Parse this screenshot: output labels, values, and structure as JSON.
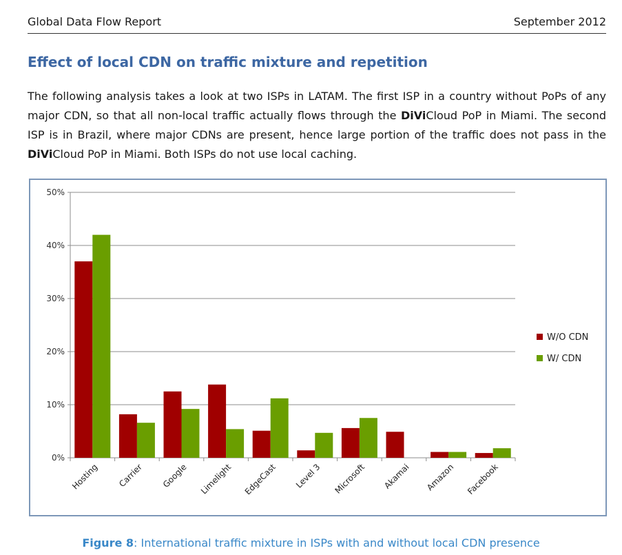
{
  "header": {
    "left": "Global Data Flow Report",
    "right": "September 2012"
  },
  "section": {
    "title": "Effect of local CDN on traffic mixture and repetition",
    "intro_part1": "The following analysis takes a look at two ISPs in LATAM. The first ISP in a country without PoPs of any major CDN, so that all non-local traffic actually flows through the ",
    "brand_bold": "DiVi",
    "brand_rest": "Cloud",
    "intro_part2": " PoP in Miami. The second ISP is in Brazil, where major CDNs are present, hence large portion of the traffic does not pass in the ",
    "intro_part3": " PoP in Miami. Both ISPs do not use local caching."
  },
  "chart_data": {
    "type": "bar",
    "categories": [
      "Hosting",
      "Carrier",
      "Google",
      "Limelight",
      "EdgeCast",
      "Level 3",
      "Microsoft",
      "Akamai",
      "Amazon",
      "Facebook"
    ],
    "series": [
      {
        "name": "W/O CDN",
        "color": "#a00000",
        "values": [
          37,
          8.2,
          12.5,
          13.8,
          5.1,
          1.4,
          5.6,
          4.9,
          1.1,
          0.9
        ]
      },
      {
        "name": "W/ CDN",
        "color": "#6a9e00",
        "values": [
          42,
          6.6,
          9.2,
          5.4,
          11.2,
          4.7,
          7.5,
          0,
          1.1,
          1.8
        ]
      }
    ],
    "ylim": [
      0,
      50
    ],
    "yticks": [
      0,
      10,
      20,
      30,
      40,
      50
    ],
    "ytick_labels": [
      "0%",
      "10%",
      "20%",
      "30%",
      "40%",
      "50%"
    ],
    "grid": true,
    "legend": "right"
  },
  "caption": {
    "label": "Figure 8",
    "text": ": International traffic mixture in ISPs with and without local CDN presence"
  }
}
